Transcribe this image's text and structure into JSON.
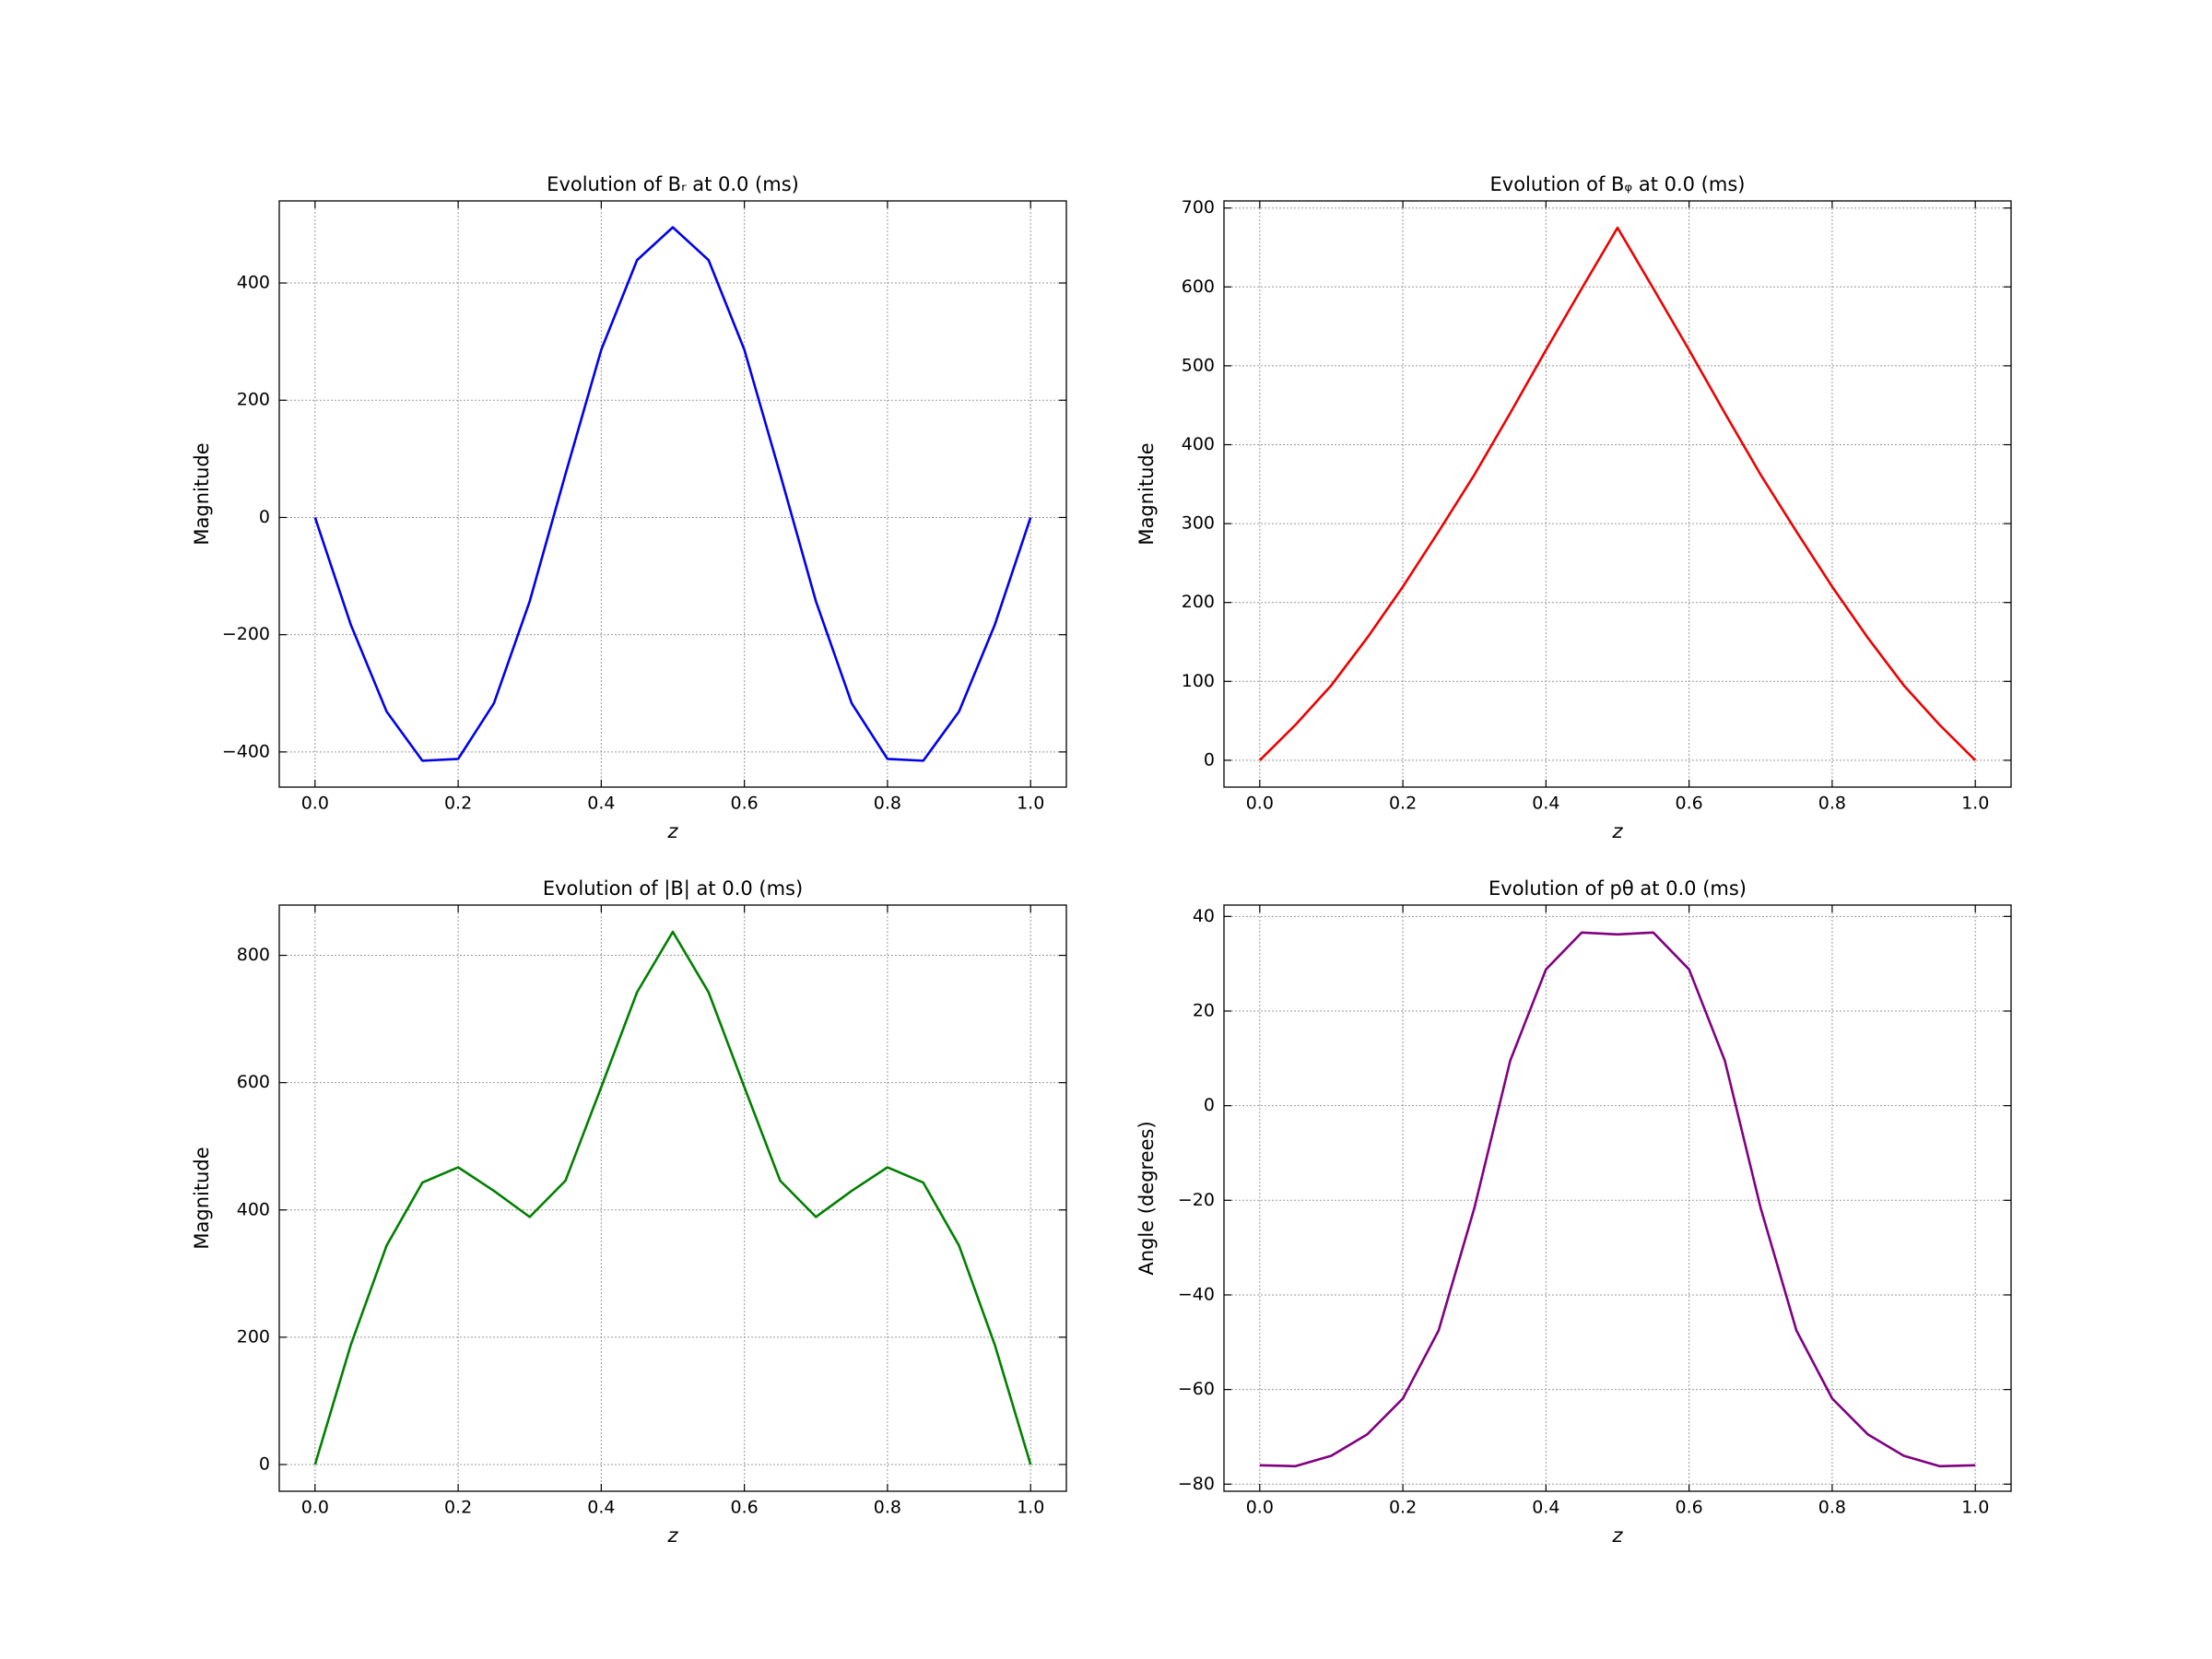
{
  "chart_data": [
    {
      "type": "line",
      "title": "Evolution of Bᵣ at 0.0 (ms)",
      "xlabel": "z",
      "ylabel": "Magnitude",
      "color": "#0000ee",
      "x": [
        0,
        0.05,
        0.1,
        0.15,
        0.2,
        0.25,
        0.3,
        0.35,
        0.4,
        0.45,
        0.5,
        0.55,
        0.6,
        0.65,
        0.7,
        0.75,
        0.8,
        0.85,
        0.9,
        0.95,
        1
      ],
      "values": [
        0,
        -183,
        -331,
        -415,
        -412,
        -317,
        -143,
        74,
        286,
        439,
        495,
        439,
        286,
        74,
        -143,
        -317,
        -412,
        -415,
        -331,
        -183,
        0
      ],
      "xlim": [
        -0.05,
        1.05
      ],
      "xticks": [
        {
          "value": 0,
          "label": "0.0"
        },
        0.2,
        0.4,
        0.6,
        0.8,
        {
          "value": 1,
          "label": "1.0"
        }
      ],
      "ylim": [
        -460,
        540
      ],
      "yticks": [
        {
          "value": -400,
          "label": "−400"
        },
        {
          "value": -200,
          "label": "−200"
        },
        0,
        200,
        400
      ],
      "grid": true
    },
    {
      "type": "line",
      "title": "Evolution of Bᵩ at 0.0 (ms)",
      "xlabel": "z",
      "ylabel": "Magnitude",
      "color": "#ee0000",
      "x": [
        0,
        0.05,
        0.1,
        0.15,
        0.2,
        0.25,
        0.3,
        0.35,
        0.4,
        0.45,
        0.5,
        0.55,
        0.6,
        0.65,
        0.7,
        0.75,
        0.8,
        0.85,
        0.9,
        0.95,
        1
      ],
      "values": [
        0,
        45,
        95,
        155,
        220,
        290,
        362,
        440,
        520,
        598,
        675,
        598,
        520,
        440,
        362,
        290,
        220,
        155,
        95,
        45,
        0
      ],
      "xlim": [
        -0.05,
        1.05
      ],
      "xticks": [
        {
          "value": 0,
          "label": "0.0"
        },
        0.2,
        0.4,
        0.6,
        0.8,
        {
          "value": 1,
          "label": "1.0"
        }
      ],
      "ylim": [
        -34,
        709
      ],
      "yticks": [
        0,
        100,
        200,
        300,
        400,
        500,
        600,
        700
      ],
      "grid": true
    },
    {
      "type": "line",
      "title": "Evolution of |B| at 0.0 (ms)",
      "xlabel": "z",
      "ylabel": "Magnitude",
      "color": "#008000",
      "x": [
        0,
        0.05,
        0.1,
        0.15,
        0.2,
        0.25,
        0.3,
        0.35,
        0.4,
        0.45,
        0.5,
        0.55,
        0.6,
        0.65,
        0.7,
        0.75,
        0.8,
        0.85,
        0.9,
        0.95,
        1
      ],
      "values": [
        0,
        188,
        344,
        443,
        467,
        430,
        389,
        446,
        593,
        742,
        837,
        742,
        593,
        446,
        389,
        430,
        467,
        443,
        344,
        188,
        0
      ],
      "xlim": [
        -0.05,
        1.05
      ],
      "xticks": [
        {
          "value": 0,
          "label": "0.0"
        },
        0.2,
        0.4,
        0.6,
        0.8,
        {
          "value": 1,
          "label": "1.0"
        }
      ],
      "ylim": [
        -42,
        879
      ],
      "yticks": [
        0,
        200,
        400,
        600,
        800
      ],
      "grid": true
    },
    {
      "type": "line",
      "title": "Evolution of pθ at 0.0 (ms)",
      "xlabel": "z",
      "ylabel": "Angle (degrees)",
      "color": "#800080",
      "x": [
        0,
        0.05,
        0.1,
        0.15,
        0.2,
        0.25,
        0.3,
        0.35,
        0.4,
        0.45,
        0.5,
        0.55,
        0.6,
        0.65,
        0.7,
        0.75,
        0.8,
        0.85,
        0.9,
        0.95,
        1
      ],
      "values": [
        -76,
        -76.2,
        -74,
        -69.5,
        -61.9,
        -47.5,
        -21.6,
        9.5,
        28.8,
        36.6,
        36.2,
        36.6,
        28.8,
        9.5,
        -21.6,
        -47.5,
        -61.9,
        -69.5,
        -74,
        -76.2,
        -76
      ],
      "xlim": [
        -0.05,
        1.05
      ],
      "xticks": [
        {
          "value": 0,
          "label": "0.0"
        },
        0.2,
        0.4,
        0.6,
        0.8,
        {
          "value": 1,
          "label": "1.0"
        }
      ],
      "ylim": [
        -81.5,
        42.4
      ],
      "yticks": [
        {
          "value": -80,
          "label": "−80"
        },
        {
          "value": -60,
          "label": "−60"
        },
        {
          "value": -40,
          "label": "−40"
        },
        {
          "value": -20,
          "label": "−20"
        },
        0,
        20,
        40
      ],
      "grid": true
    }
  ]
}
